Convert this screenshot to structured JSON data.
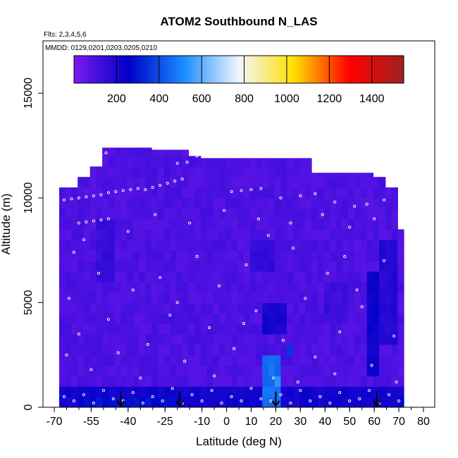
{
  "chart_data": {
    "type": "heatmap",
    "title": "ATOM2 Southbound N_LAS",
    "subtitle": "Flts: 2,3,4,5,6",
    "annotation": "MMDD: 0129,0201,0203,0205,0210",
    "xlabel": "Latitude (deg N)",
    "ylabel": "Altitude (m)",
    "xlim": [
      -70,
      85
    ],
    "ylim": [
      0,
      17500
    ],
    "x_ticks": [
      -70,
      -55,
      -40,
      -25,
      -10,
      0,
      10,
      20,
      30,
      40,
      50,
      60,
      70,
      80
    ],
    "x_minor_step": 5,
    "y_ticks": [
      0,
      5000,
      10000,
      15000
    ],
    "colorbar": {
      "min": 0,
      "max": 1550,
      "ticks": [
        200,
        400,
        600,
        800,
        1000,
        1200,
        1400
      ],
      "colors": [
        "#7a1bf0",
        "#0000c8",
        "#1a8cff",
        "#f2f6ff",
        "#ffe000",
        "#ff0000",
        "#a02020"
      ],
      "placement": "top"
    },
    "grid": false,
    "data_extent_lat": [
      -68,
      72
    ],
    "base_value": 70,
    "features": [
      {
        "lat": [
          -68,
          72
        ],
        "alt": [
          0,
          1000
        ],
        "value": 240
      },
      {
        "lat": [
          -60,
          -20
        ],
        "alt": [
          0,
          500
        ],
        "value": 300
      },
      {
        "lat": [
          15,
          22
        ],
        "alt": [
          200,
          2500
        ],
        "value": 480
      },
      {
        "lat": [
          18.5,
          21
        ],
        "alt": [
          800,
          1600
        ],
        "value": 560
      },
      {
        "lat": [
          25,
          28
        ],
        "alt": [
          2500,
          3100
        ],
        "value": 380
      },
      {
        "lat": [
          14,
          24
        ],
        "alt": [
          3500,
          5200
        ],
        "value": 230
      },
      {
        "lat": [
          56,
          62
        ],
        "alt": [
          1500,
          6500
        ],
        "value": 250
      },
      {
        "lat": [
          62,
          70
        ],
        "alt": [
          3000,
          8000
        ],
        "value": 200
      },
      {
        "lat": [
          -52,
          -45
        ],
        "alt": [
          6000,
          9000
        ],
        "value": 160
      },
      {
        "lat": [
          10,
          20
        ],
        "alt": [
          6500,
          8000
        ],
        "value": 170
      },
      {
        "lat": [
          40,
          50
        ],
        "alt": [
          4000,
          6000
        ],
        "value": 150
      }
    ],
    "arrows_lat": [
      -43,
      -19,
      20,
      61
    ],
    "sample_points": [
      [
        -66,
        9900
      ],
      [
        -63,
        9950
      ],
      [
        -60,
        10000
      ],
      [
        -57,
        10050
      ],
      [
        -54,
        10100
      ],
      [
        -51,
        10150
      ],
      [
        -48,
        10250
      ],
      [
        -45,
        10300
      ],
      [
        -42,
        10350
      ],
      [
        -39,
        10400
      ],
      [
        -36,
        10450
      ],
      [
        -33,
        10400
      ],
      [
        -30,
        10500
      ],
      [
        -27,
        10600
      ],
      [
        -24,
        10700
      ],
      [
        -21,
        10800
      ],
      [
        -18,
        10900
      ],
      [
        -57,
        11600
      ],
      [
        -55,
        11750
      ],
      [
        -53,
        11900
      ],
      [
        -51,
        12050
      ],
      [
        -49,
        12150
      ],
      [
        -20,
        11650
      ],
      [
        -16,
        11700
      ],
      [
        -12,
        12000
      ],
      [
        -8,
        12050
      ],
      [
        -60,
        8800
      ],
      [
        -57,
        8850
      ],
      [
        -54,
        8900
      ],
      [
        -51,
        8950
      ],
      [
        -48,
        9000
      ],
      [
        2,
        10300
      ],
      [
        6,
        10350
      ],
      [
        10,
        10400
      ],
      [
        14,
        10450
      ],
      [
        22,
        10000
      ],
      [
        30,
        10100
      ],
      [
        36,
        10200
      ],
      [
        44,
        9800
      ],
      [
        52,
        9600
      ],
      [
        57,
        9700
      ],
      [
        64,
        9900
      ],
      [
        -66,
        500
      ],
      [
        -62,
        300
      ],
      [
        -58,
        600
      ],
      [
        -54,
        200
      ],
      [
        -50,
        800
      ],
      [
        -46,
        400
      ],
      [
        -42,
        300
      ],
      [
        -38,
        700
      ],
      [
        -34,
        200
      ],
      [
        -30,
        500
      ],
      [
        -26,
        300
      ],
      [
        -22,
        900
      ],
      [
        -18,
        200
      ],
      [
        -14,
        600
      ],
      [
        -10,
        300
      ],
      [
        -6,
        800
      ],
      [
        -2,
        200
      ],
      [
        2,
        500
      ],
      [
        6,
        300
      ],
      [
        10,
        900
      ],
      [
        14,
        400
      ],
      [
        18,
        300
      ],
      [
        22,
        600
      ],
      [
        26,
        200
      ],
      [
        30,
        800
      ],
      [
        34,
        300
      ],
      [
        38,
        500
      ],
      [
        42,
        200
      ],
      [
        46,
        700
      ],
      [
        50,
        300
      ],
      [
        54,
        400
      ],
      [
        58,
        800
      ],
      [
        62,
        200
      ],
      [
        66,
        600
      ],
      [
        70,
        300
      ],
      [
        -65,
        2500
      ],
      [
        -60,
        3500
      ],
      [
        -55,
        1800
      ],
      [
        -48,
        4200
      ],
      [
        -44,
        2600
      ],
      [
        -38,
        5600
      ],
      [
        -32,
        3000
      ],
      [
        -27,
        6200
      ],
      [
        -23,
        4400
      ],
      [
        -17,
        2200
      ],
      [
        -12,
        7200
      ],
      [
        -7,
        3800
      ],
      [
        -3,
        5800
      ],
      [
        3,
        2800
      ],
      [
        8,
        6800
      ],
      [
        12,
        4600
      ],
      [
        17,
        8200
      ],
      [
        23,
        3200
      ],
      [
        27,
        7600
      ],
      [
        32,
        5200
      ],
      [
        36,
        2400
      ],
      [
        41,
        6400
      ],
      [
        46,
        3600
      ],
      [
        50,
        8600
      ],
      [
        55,
        4800
      ],
      [
        59,
        2000
      ],
      [
        64,
        7000
      ],
      [
        68,
        3400
      ],
      [
        -62,
        7400
      ],
      [
        -52,
        6400
      ],
      [
        -40,
        8400
      ],
      [
        -29,
        9200
      ],
      [
        -15,
        8800
      ],
      [
        -1,
        9400
      ],
      [
        13,
        9000
      ],
      [
        26,
        8800
      ],
      [
        39,
        9200
      ],
      [
        48,
        7200
      ],
      [
        60,
        9000
      ],
      [
        -64,
        5200
      ],
      [
        -58,
        8000
      ],
      [
        -35,
        1400
      ],
      [
        -20,
        5000
      ],
      [
        -5,
        1500
      ],
      [
        7,
        4000
      ],
      [
        19,
        1400
      ],
      [
        29,
        1200
      ],
      [
        44,
        1600
      ],
      [
        53,
        5600
      ],
      [
        69,
        1200
      ]
    ]
  }
}
